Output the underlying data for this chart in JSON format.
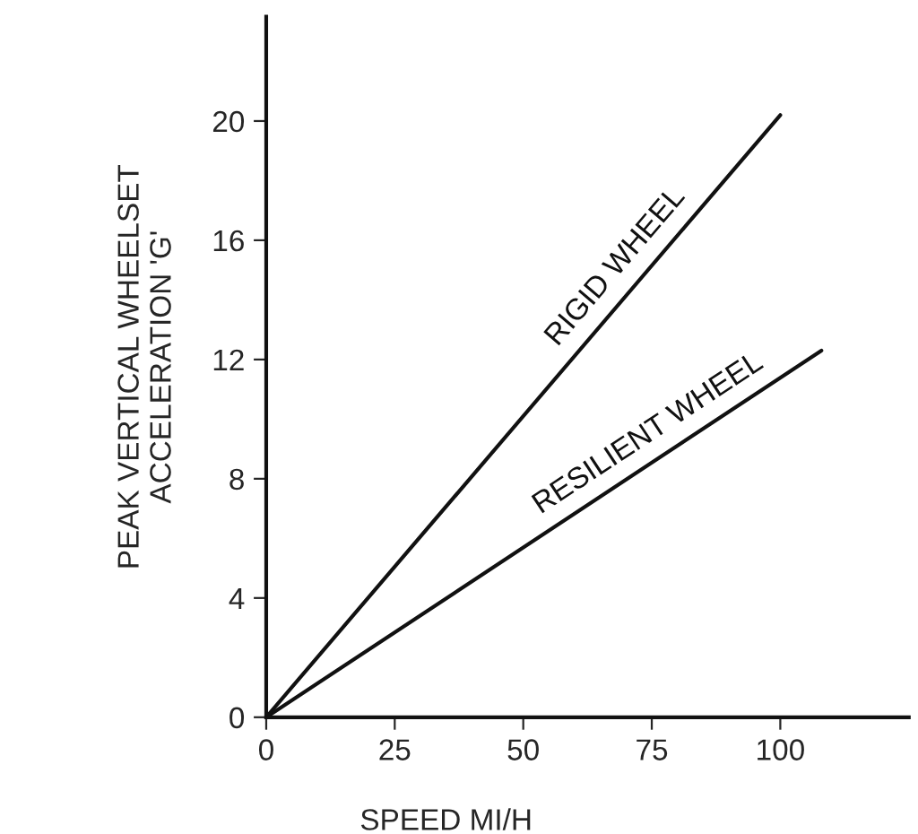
{
  "chart_data": {
    "type": "line",
    "xlabel": "SPEED MI/H",
    "ylabel": "PEAK VERTICAL WHEELSET\nACCELERATION 'G'",
    "series": [
      {
        "name": "RIGID WHEEL",
        "color": "#111111",
        "x": [
          0,
          100
        ],
        "values": [
          0,
          20.2
        ]
      },
      {
        "name": "RESILIENT WHEEL",
        "color": "#111111",
        "x": [
          0,
          108
        ],
        "values": [
          0,
          12.3
        ]
      }
    ],
    "xlim": [
      0,
      125
    ],
    "ylim": [
      0,
      23.5
    ],
    "xticks": [
      0,
      25,
      50,
      75,
      100
    ],
    "yticks": [
      0,
      4,
      8,
      12,
      16,
      20
    ],
    "grid": false,
    "legend": false,
    "marker": "none",
    "line_style": "solid"
  }
}
